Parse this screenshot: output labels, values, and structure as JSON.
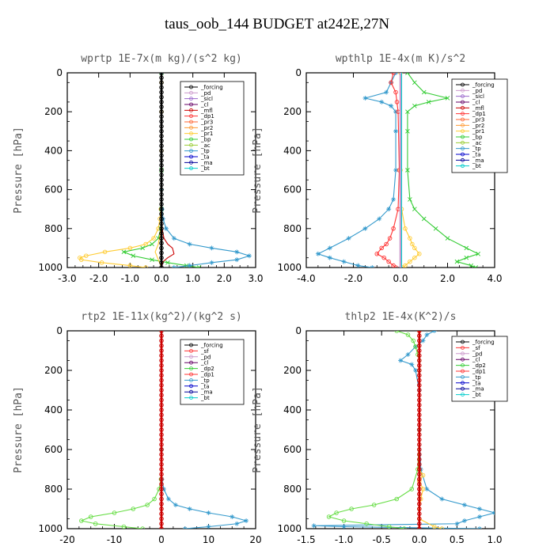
{
  "figure": {
    "title": "taus_oob_144  BUDGET at242E,27N"
  },
  "chart_data": [
    {
      "type": "line",
      "title": "wprtp  1E-7x(m kg)/(s^2 kg)",
      "ylabel": "Pressure [hPa]",
      "xlim": [
        -3.0,
        3.0
      ],
      "ylim": [
        1000,
        0
      ],
      "xticks": [
        "-3.0",
        "-2.0",
        "-1.0",
        "0.0",
        "1.0",
        "2.0",
        "3.0"
      ],
      "yticks": [
        "0",
        "200",
        "400",
        "600",
        "800",
        "1000"
      ],
      "legend": [
        "_forcing",
        "_pd",
        "_sicl",
        "_cl",
        "_mfl",
        "_dp1",
        "_pr3",
        "_pr2",
        "_pr1",
        "_bp",
        "_ac",
        "_tp",
        "_ta",
        "_ma",
        "_bt"
      ],
      "series": [
        {
          "name": "_ac",
          "color": "#ffcc33",
          "marker": "o",
          "p": [
            0,
            50,
            200,
            400,
            600,
            700,
            750,
            800,
            850,
            880,
            900,
            920,
            940,
            950,
            960,
            975,
            990,
            1000
          ],
          "x": [
            0,
            0,
            0,
            0,
            0,
            -0.02,
            -0.05,
            -0.1,
            -0.25,
            -0.5,
            -1.0,
            -1.8,
            -2.4,
            -2.6,
            -2.55,
            -1.9,
            -1.0,
            -0.5
          ]
        },
        {
          "name": "_bp",
          "color": "#33cc33",
          "marker": "x",
          "p": [
            0,
            500,
            700,
            800,
            850,
            880,
            900,
            920,
            940,
            960,
            975,
            990,
            1000
          ],
          "x": [
            0,
            0,
            0,
            -0.02,
            -0.1,
            -0.3,
            -0.6,
            -1.2,
            -0.9,
            -0.3,
            0.2,
            0.8,
            1.2
          ]
        },
        {
          "name": "_tp",
          "color": "#3399cc",
          "marker": "*",
          "p": [
            0,
            600,
            700,
            750,
            800,
            850,
            880,
            900,
            920,
            940,
            960,
            975,
            990,
            1000
          ],
          "x": [
            0,
            0,
            0.02,
            0.05,
            0.15,
            0.4,
            0.9,
            1.6,
            2.4,
            2.8,
            2.4,
            1.6,
            0.9,
            0.4
          ]
        },
        {
          "name": "_mfl",
          "color": "#cc0000",
          "marker": "",
          "p": [
            0,
            700,
            800,
            850,
            880,
            900,
            930,
            950,
            970,
            990,
            1000
          ],
          "x": [
            0,
            0,
            0.02,
            0.08,
            0.2,
            0.35,
            0.4,
            0.2,
            0.05,
            0.02,
            0
          ]
        },
        {
          "name": "_pr1",
          "color": "#ffcc33",
          "marker": "",
          "p": [
            0,
            700,
            800,
            880,
            920,
            960,
            1000
          ],
          "x": [
            0,
            0,
            -0.02,
            -0.1,
            -0.2,
            -0.1,
            0
          ]
        },
        {
          "name": "_forcing",
          "color": "#000000",
          "marker": "o",
          "p": [
            0,
            25,
            50,
            75,
            100,
            125,
            150,
            175,
            200,
            225,
            250,
            275,
            300,
            325,
            350,
            375,
            400,
            425,
            450,
            475,
            500,
            525,
            550,
            575,
            600,
            625,
            650,
            675,
            700,
            725,
            750,
            775,
            800,
            825,
            850,
            875,
            900,
            925,
            950,
            975,
            1000
          ],
          "x": [
            0,
            0,
            0,
            0,
            0,
            0,
            0,
            0,
            0,
            0,
            0,
            0,
            0,
            0,
            0,
            0,
            0,
            0,
            0,
            0,
            0,
            0,
            0,
            0,
            0,
            0,
            0,
            0,
            0,
            0,
            0,
            0,
            0,
            0,
            0,
            0,
            0,
            0,
            0,
            0,
            0
          ]
        }
      ]
    },
    {
      "type": "line",
      "title": "wpthlp  1E-4x(m K)/s^2",
      "ylabel": "Pressure [hPa]",
      "xlim": [
        -4.0,
        4.0
      ],
      "ylim": [
        1000,
        0
      ],
      "xticks": [
        "-4.0",
        "-2.0",
        "0.0",
        "2.0",
        "4.0"
      ],
      "yticks": [
        "0",
        "200",
        "400",
        "600",
        "800",
        "1000"
      ],
      "legend": [
        "_forcing",
        "_pd",
        "_sicl",
        "_cl",
        "_mfl",
        "_dp1",
        "_pr3",
        "_pr2",
        "_pr1",
        "_bp",
        "_ac",
        "_tp",
        "_ta",
        "_ma",
        "_bt"
      ],
      "series": [
        {
          "name": "_bp",
          "color": "#33cc33",
          "marker": "x",
          "p": [
            0,
            50,
            100,
            130,
            150,
            170,
            200,
            300,
            500,
            650,
            700,
            750,
            800,
            850,
            900,
            930,
            950,
            970,
            990,
            1000
          ],
          "x": [
            0.3,
            0.6,
            1.0,
            2.0,
            1.2,
            0.6,
            0.3,
            0.3,
            0.3,
            0.4,
            0.6,
            1.0,
            1.5,
            2.0,
            2.8,
            3.3,
            2.8,
            2.4,
            3.0,
            3.2
          ]
        },
        {
          "name": "_tp",
          "color": "#3399cc",
          "marker": "*",
          "p": [
            0,
            50,
            100,
            130,
            150,
            170,
            200,
            300,
            500,
            650,
            700,
            750,
            800,
            850,
            900,
            930,
            950,
            970,
            990,
            1000
          ],
          "x": [
            -0.2,
            -0.4,
            -0.6,
            -1.5,
            -0.8,
            -0.4,
            -0.2,
            -0.2,
            -0.2,
            -0.3,
            -0.5,
            -0.9,
            -1.5,
            -2.2,
            -3.0,
            -3.5,
            -3.0,
            -2.4,
            -1.8,
            -1.2
          ]
        },
        {
          "name": "_ac",
          "color": "#ffcc33",
          "marker": "o",
          "p": [
            0,
            500,
            700,
            800,
            850,
            880,
            900,
            930,
            950,
            970,
            990,
            1000
          ],
          "x": [
            0,
            0,
            0.05,
            0.2,
            0.4,
            0.5,
            0.6,
            0.8,
            0.6,
            0.4,
            0.2,
            0.1
          ]
        },
        {
          "name": "_dp1",
          "color": "#ff3333",
          "marker": "o",
          "p": [
            0,
            50,
            100,
            150,
            200,
            500,
            700,
            800,
            850,
            880,
            900,
            930,
            950,
            970,
            990,
            1000
          ],
          "x": [
            -0.3,
            -0.4,
            -0.2,
            -0.15,
            -0.1,
            -0.05,
            -0.1,
            -0.3,
            -0.45,
            -0.6,
            -0.8,
            -1.0,
            -0.7,
            -0.5,
            -0.3,
            -0.2
          ]
        },
        {
          "name": "_forcing",
          "color": "#cc99cc",
          "marker": "",
          "p": [
            0,
            1000
          ],
          "x": [
            0,
            0
          ]
        },
        {
          "name": "_bt",
          "color": "#00cccc",
          "marker": "",
          "p": [
            0,
            1000
          ],
          "x": [
            0.05,
            0.05
          ]
        }
      ]
    },
    {
      "type": "line",
      "title": "rtp2  1E-11x(kg^2)/(kg^2 s)",
      "ylabel": "Pressure [hPa]",
      "xlim": [
        -20,
        20
      ],
      "ylim": [
        1000,
        0
      ],
      "xticks": [
        "-20",
        "-10",
        "0",
        "10",
        "20"
      ],
      "yticks": [
        "0",
        "200",
        "400",
        "600",
        "800",
        "1000"
      ],
      "legend": [
        "_forcing",
        "_sf",
        "_pd",
        "_cl",
        "_dp2",
        "_dp1",
        "_tp",
        "_ta",
        "_ma",
        "_bt"
      ],
      "series": [
        {
          "name": "_dp1",
          "color": "#66dd44",
          "marker": "o",
          "p": [
            0,
            600,
            750,
            800,
            850,
            880,
            900,
            920,
            940,
            960,
            975,
            990,
            1000
          ],
          "x": [
            0,
            0,
            -0.1,
            -0.5,
            -1.5,
            -3,
            -6,
            -10,
            -15,
            -17,
            -14,
            -8,
            -4
          ]
        },
        {
          "name": "_tp",
          "color": "#3399cc",
          "marker": "*",
          "p": [
            0,
            600,
            750,
            800,
            850,
            880,
            900,
            920,
            940,
            960,
            975,
            990,
            1000
          ],
          "x": [
            0,
            0,
            0.1,
            0.5,
            1.5,
            3,
            6,
            10,
            15,
            18,
            16,
            10,
            5
          ]
        },
        {
          "name": "_forcing",
          "color": "#cc0000",
          "marker": "o",
          "p": [
            0,
            25,
            50,
            75,
            100,
            125,
            150,
            175,
            200,
            225,
            250,
            275,
            300,
            325,
            350,
            375,
            400,
            425,
            450,
            475,
            500,
            525,
            550,
            575,
            600,
            625,
            650,
            675,
            700,
            725,
            750,
            775,
            800,
            825,
            850,
            875,
            900,
            925,
            950,
            975,
            1000
          ],
          "x": [
            0,
            0,
            0,
            0,
            0,
            0,
            0,
            0,
            0,
            0,
            0,
            0,
            0,
            0,
            0,
            0,
            0,
            0,
            0,
            0,
            0,
            0,
            0,
            0,
            0,
            0,
            0,
            0,
            0,
            0,
            0,
            0,
            0,
            0,
            0,
            0,
            0,
            0,
            0,
            0,
            0
          ]
        }
      ]
    },
    {
      "type": "line",
      "title": "thlp2  1E-4x(K^2)/s",
      "ylabel": "Pressure [hPa]",
      "xlim": [
        -1.5,
        1.0
      ],
      "ylim": [
        1000,
        0
      ],
      "xticks": [
        "-1.5",
        "-1.0",
        "-0.5",
        "0.0",
        "0.5",
        "1.0"
      ],
      "yticks": [
        "0",
        "200",
        "400",
        "600",
        "800",
        "1000"
      ],
      "legend": [
        "_forcing",
        "_sf",
        "_pd",
        "_cl",
        "_dp2",
        "_dp1",
        "_tp",
        "_ta",
        "_ma",
        "_bt"
      ],
      "series": [
        {
          "name": "_tp",
          "color": "#3399cc",
          "marker": "*",
          "p": [
            0,
            20,
            50,
            80,
            120,
            150,
            170,
            200,
            300,
            500,
            700,
            800,
            850,
            880,
            900,
            920,
            940,
            960,
            975,
            985,
            990,
            1000
          ],
          "x": [
            0.2,
            0.1,
            0.05,
            -0.05,
            -0.15,
            -0.25,
            -0.1,
            -0.05,
            0,
            0,
            0.02,
            0.1,
            0.3,
            0.6,
            0.8,
            1.0,
            0.8,
            0.6,
            0.5,
            -1.4,
            -1.0,
            0.8
          ]
        },
        {
          "name": "_dp1",
          "color": "#66dd44",
          "marker": "o",
          "p": [
            0,
            20,
            50,
            80,
            120,
            150,
            200,
            500,
            700,
            800,
            850,
            880,
            900,
            920,
            940,
            960,
            975,
            990,
            1000
          ],
          "x": [
            -0.3,
            -0.15,
            -0.08,
            -0.05,
            -0.02,
            0,
            0,
            0,
            -0.02,
            -0.1,
            -0.3,
            -0.6,
            -0.9,
            -1.1,
            -1.2,
            -1.0,
            -0.7,
            -0.4,
            -0.2
          ]
        },
        {
          "name": "_pd",
          "color": "#ffcc33",
          "marker": "o",
          "p": [
            0,
            700,
            730,
            760,
            800,
            850,
            900,
            950,
            990,
            1000
          ],
          "x": [
            0,
            0,
            0.05,
            0.0,
            0.05,
            0.02,
            0,
            0,
            0.2,
            0.3
          ]
        },
        {
          "name": "_forcing",
          "color": "#cc0000",
          "marker": "o",
          "p": [
            0,
            25,
            50,
            75,
            100,
            125,
            150,
            175,
            200,
            225,
            250,
            275,
            300,
            325,
            350,
            375,
            400,
            425,
            450,
            475,
            500,
            525,
            550,
            575,
            600,
            625,
            650,
            675,
            700,
            725,
            750,
            775,
            800,
            825,
            850,
            875,
            900,
            925,
            950,
            975,
            1000
          ],
          "x": [
            0,
            0,
            0,
            0,
            0,
            0,
            0,
            0,
            0,
            0,
            0,
            0,
            0,
            0,
            0,
            0,
            0,
            0,
            0,
            0,
            0,
            0,
            0,
            0,
            0,
            0,
            0,
            0,
            0,
            0,
            0,
            0,
            0,
            0,
            0,
            0,
            0,
            0,
            0,
            0,
            0
          ]
        }
      ]
    }
  ]
}
